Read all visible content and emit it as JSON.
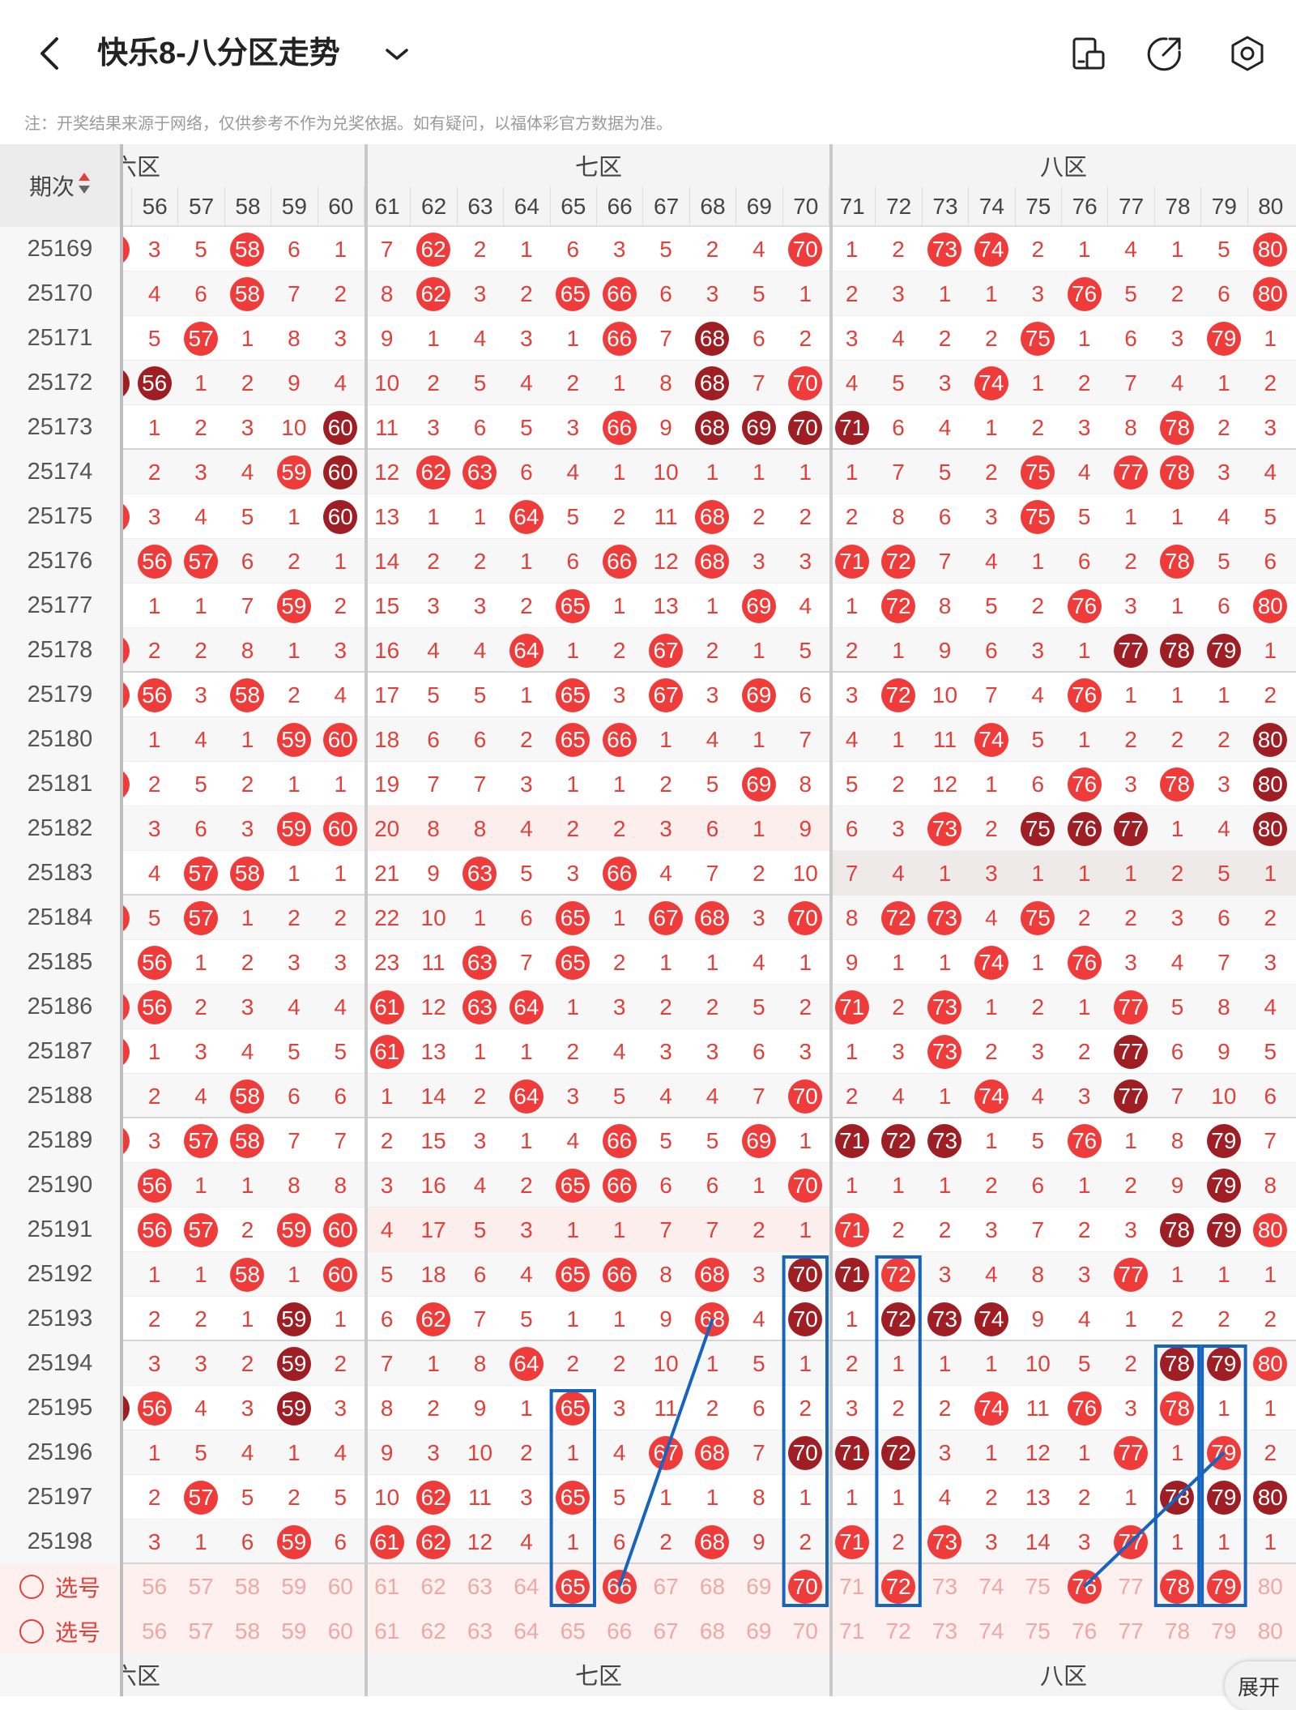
{
  "header": {
    "title": "快乐8-八分区走势",
    "back_icon": "chevron-left-icon",
    "dropdown_icon": "chevron-down-icon",
    "actions": [
      "split-screen-icon",
      "share-icon",
      "settings-icon"
    ]
  },
  "note": "注：开奖结果来源于网络，仅供参考不作为兑奖依据。如有疑问，以福体彩官方数据为准。",
  "table": {
    "period_header": "期次",
    "zones": [
      {
        "label": "六区",
        "visible_label": "六区",
        "start": 56,
        "end": 60
      },
      {
        "label": "七区",
        "visible_label": "七区",
        "start": 61,
        "end": 70
      },
      {
        "label": "八区",
        "visible_label": "八区",
        "start": 71,
        "end": 80
      }
    ],
    "columns": [
      56,
      57,
      58,
      59,
      60,
      61,
      62,
      63,
      64,
      65,
      66,
      67,
      68,
      69,
      70,
      71,
      72,
      73,
      74,
      75,
      76,
      77,
      78,
      79,
      80
    ],
    "rows": [
      {
        "p": "25169",
        "v": [
          3,
          5,
          58,
          6,
          1,
          7,
          62,
          2,
          1,
          6,
          3,
          5,
          2,
          4,
          70,
          1,
          2,
          73,
          74,
          2,
          1,
          4,
          1,
          5,
          80
        ]
      },
      {
        "p": "25170",
        "v": [
          4,
          6,
          58,
          7,
          2,
          8,
          62,
          3,
          2,
          65,
          66,
          6,
          3,
          5,
          1,
          2,
          3,
          1,
          1,
          3,
          76,
          5,
          2,
          6,
          80
        ]
      },
      {
        "p": "25171",
        "v": [
          5,
          57,
          1,
          8,
          3,
          9,
          1,
          4,
          3,
          1,
          66,
          7,
          68,
          6,
          2,
          3,
          4,
          2,
          2,
          75,
          1,
          6,
          3,
          79,
          1
        ]
      },
      {
        "p": "25172",
        "v": [
          56,
          1,
          2,
          9,
          4,
          10,
          2,
          5,
          4,
          2,
          1,
          8,
          68,
          7,
          70,
          4,
          5,
          3,
          74,
          1,
          2,
          7,
          4,
          1,
          2
        ]
      },
      {
        "p": "25173",
        "v": [
          1,
          2,
          3,
          10,
          60,
          11,
          3,
          6,
          5,
          3,
          66,
          9,
          68,
          69,
          70,
          71,
          6,
          4,
          1,
          2,
          3,
          8,
          78,
          2,
          3
        ]
      },
      {
        "p": "25174",
        "v": [
          2,
          3,
          4,
          59,
          60,
          12,
          62,
          63,
          6,
          4,
          1,
          10,
          1,
          1,
          1,
          1,
          7,
          5,
          2,
          75,
          4,
          77,
          78,
          3,
          4
        ]
      },
      {
        "p": "25175",
        "v": [
          3,
          4,
          5,
          1,
          60,
          13,
          1,
          1,
          64,
          5,
          2,
          11,
          68,
          2,
          2,
          2,
          8,
          6,
          3,
          75,
          5,
          1,
          1,
          4,
          5
        ]
      },
      {
        "p": "25176",
        "v": [
          56,
          57,
          6,
          2,
          1,
          14,
          2,
          2,
          1,
          6,
          66,
          12,
          68,
          3,
          3,
          71,
          72,
          7,
          4,
          1,
          6,
          2,
          78,
          5,
          6
        ]
      },
      {
        "p": "25177",
        "v": [
          1,
          1,
          7,
          59,
          2,
          15,
          3,
          3,
          2,
          65,
          1,
          13,
          1,
          69,
          4,
          1,
          72,
          8,
          5,
          2,
          76,
          3,
          1,
          6,
          80
        ]
      },
      {
        "p": "25178",
        "v": [
          2,
          2,
          8,
          1,
          3,
          16,
          4,
          4,
          64,
          1,
          2,
          67,
          2,
          1,
          5,
          2,
          1,
          9,
          6,
          3,
          1,
          77,
          78,
          79,
          1
        ]
      },
      {
        "p": "25179",
        "v": [
          56,
          3,
          58,
          2,
          4,
          17,
          5,
          5,
          1,
          65,
          3,
          67,
          3,
          69,
          6,
          3,
          72,
          10,
          7,
          4,
          76,
          1,
          1,
          1,
          2
        ]
      },
      {
        "p": "25180",
        "v": [
          1,
          4,
          1,
          59,
          60,
          18,
          6,
          6,
          2,
          65,
          66,
          1,
          4,
          1,
          7,
          4,
          1,
          11,
          74,
          5,
          1,
          2,
          2,
          2,
          80
        ]
      },
      {
        "p": "25181",
        "v": [
          2,
          5,
          2,
          1,
          1,
          19,
          7,
          7,
          3,
          1,
          1,
          2,
          5,
          69,
          8,
          5,
          2,
          12,
          1,
          6,
          76,
          3,
          78,
          3,
          80
        ]
      },
      {
        "p": "25182",
        "v": [
          3,
          6,
          3,
          59,
          60,
          20,
          8,
          8,
          4,
          2,
          2,
          3,
          6,
          1,
          9,
          6,
          3,
          73,
          2,
          75,
          76,
          77,
          1,
          4,
          80
        ]
      },
      {
        "p": "25183",
        "v": [
          4,
          57,
          58,
          1,
          1,
          21,
          9,
          63,
          5,
          3,
          66,
          4,
          7,
          2,
          10,
          7,
          4,
          1,
          3,
          1,
          1,
          1,
          2,
          5,
          1
        ]
      },
      {
        "p": "25184",
        "v": [
          5,
          57,
          1,
          2,
          2,
          22,
          10,
          1,
          6,
          65,
          1,
          67,
          68,
          3,
          70,
          8,
          72,
          73,
          4,
          75,
          2,
          2,
          3,
          6,
          2
        ]
      },
      {
        "p": "25185",
        "v": [
          56,
          1,
          2,
          3,
          3,
          23,
          11,
          63,
          7,
          65,
          2,
          1,
          1,
          4,
          1,
          9,
          1,
          1,
          74,
          1,
          76,
          3,
          4,
          7,
          3
        ]
      },
      {
        "p": "25186",
        "v": [
          56,
          2,
          3,
          4,
          4,
          61,
          12,
          63,
          64,
          1,
          3,
          2,
          2,
          5,
          2,
          71,
          2,
          73,
          1,
          2,
          1,
          77,
          5,
          8,
          4
        ]
      },
      {
        "p": "25187",
        "v": [
          1,
          3,
          4,
          5,
          5,
          61,
          13,
          1,
          1,
          2,
          4,
          3,
          3,
          6,
          3,
          1,
          3,
          73,
          2,
          3,
          2,
          77,
          6,
          9,
          5
        ]
      },
      {
        "p": "25188",
        "v": [
          2,
          4,
          58,
          6,
          6,
          1,
          14,
          2,
          64,
          3,
          5,
          4,
          4,
          7,
          70,
          2,
          4,
          1,
          74,
          4,
          3,
          77,
          7,
          10,
          6
        ]
      },
      {
        "p": "25189",
        "v": [
          3,
          57,
          58,
          7,
          7,
          2,
          15,
          3,
          1,
          4,
          66,
          5,
          5,
          69,
          1,
          71,
          72,
          73,
          1,
          5,
          76,
          1,
          8,
          79,
          7
        ]
      },
      {
        "p": "25190",
        "v": [
          56,
          1,
          1,
          8,
          8,
          3,
          16,
          4,
          2,
          65,
          66,
          6,
          6,
          1,
          70,
          1,
          1,
          1,
          2,
          6,
          1,
          2,
          9,
          79,
          8
        ]
      },
      {
        "p": "25191",
        "v": [
          56,
          57,
          2,
          59,
          60,
          4,
          17,
          5,
          3,
          1,
          1,
          7,
          7,
          2,
          1,
          71,
          2,
          2,
          3,
          7,
          2,
          3,
          78,
          79,
          80
        ]
      },
      {
        "p": "25192",
        "v": [
          1,
          1,
          58,
          1,
          60,
          5,
          18,
          6,
          4,
          65,
          66,
          8,
          68,
          3,
          70,
          71,
          72,
          3,
          4,
          8,
          3,
          77,
          1,
          1,
          1
        ]
      },
      {
        "p": "25193",
        "v": [
          2,
          2,
          1,
          59,
          1,
          6,
          62,
          7,
          5,
          1,
          1,
          9,
          68,
          4,
          70,
          1,
          72,
          73,
          74,
          9,
          4,
          1,
          2,
          2,
          2
        ]
      },
      {
        "p": "25194",
        "v": [
          3,
          3,
          2,
          59,
          2,
          7,
          1,
          8,
          64,
          2,
          2,
          10,
          1,
          5,
          1,
          2,
          1,
          1,
          1,
          10,
          5,
          2,
          78,
          79,
          80
        ]
      },
      {
        "p": "25195",
        "v": [
          56,
          4,
          3,
          59,
          3,
          8,
          2,
          9,
          1,
          65,
          3,
          11,
          2,
          6,
          2,
          3,
          2,
          2,
          74,
          11,
          76,
          3,
          78,
          1,
          1
        ]
      },
      {
        "p": "25196",
        "v": [
          1,
          5,
          4,
          1,
          4,
          9,
          3,
          10,
          2,
          1,
          4,
          67,
          68,
          7,
          70,
          71,
          72,
          3,
          1,
          12,
          1,
          77,
          1,
          79,
          2
        ]
      },
      {
        "p": "25197",
        "v": [
          2,
          57,
          5,
          2,
          5,
          10,
          62,
          11,
          3,
          65,
          5,
          1,
          1,
          8,
          1,
          1,
          1,
          4,
          2,
          13,
          2,
          1,
          78,
          79,
          80
        ]
      },
      {
        "p": "25198",
        "v": [
          3,
          1,
          6,
          59,
          6,
          61,
          62,
          12,
          4,
          1,
          6,
          2,
          68,
          9,
          2,
          71,
          2,
          73,
          3,
          14,
          3,
          77,
          1,
          1,
          1
        ]
      }
    ],
    "dark_balls": [
      "25172-56",
      "25171-68",
      "25172-68",
      "25173-68",
      "25173-69",
      "25173-70",
      "25173-71",
      "25173-60",
      "25174-60",
      "25175-60",
      "25178-77",
      "25178-78",
      "25178-79",
      "25180-80",
      "25181-80",
      "25182-80",
      "25182-75",
      "25182-76",
      "25182-77",
      "25187-77",
      "25188-77",
      "25189-71",
      "25189-72",
      "25189-73",
      "25189-79",
      "25190-79",
      "25191-78",
      "25191-79",
      "25192-70",
      "25192-71",
      "25193-59",
      "25193-70",
      "25193-72",
      "25193-73",
      "25193-74",
      "25194-59",
      "25194-78",
      "25194-79",
      "25195-59",
      "25196-70",
      "25196-71",
      "25196-72",
      "25197-78",
      "25197-79",
      "25197-80"
    ],
    "select_rows": [
      {
        "label": "选号",
        "selected": [
          65,
          66,
          70,
          72,
          76,
          78,
          79
        ]
      },
      {
        "label": "选号",
        "selected": []
      }
    ],
    "expand_label": "展开"
  },
  "colors": {
    "red": "#ef3b3a",
    "dark_red": "#9e1e24",
    "text_red": "#e0413a",
    "box_blue": "#1565c0"
  }
}
